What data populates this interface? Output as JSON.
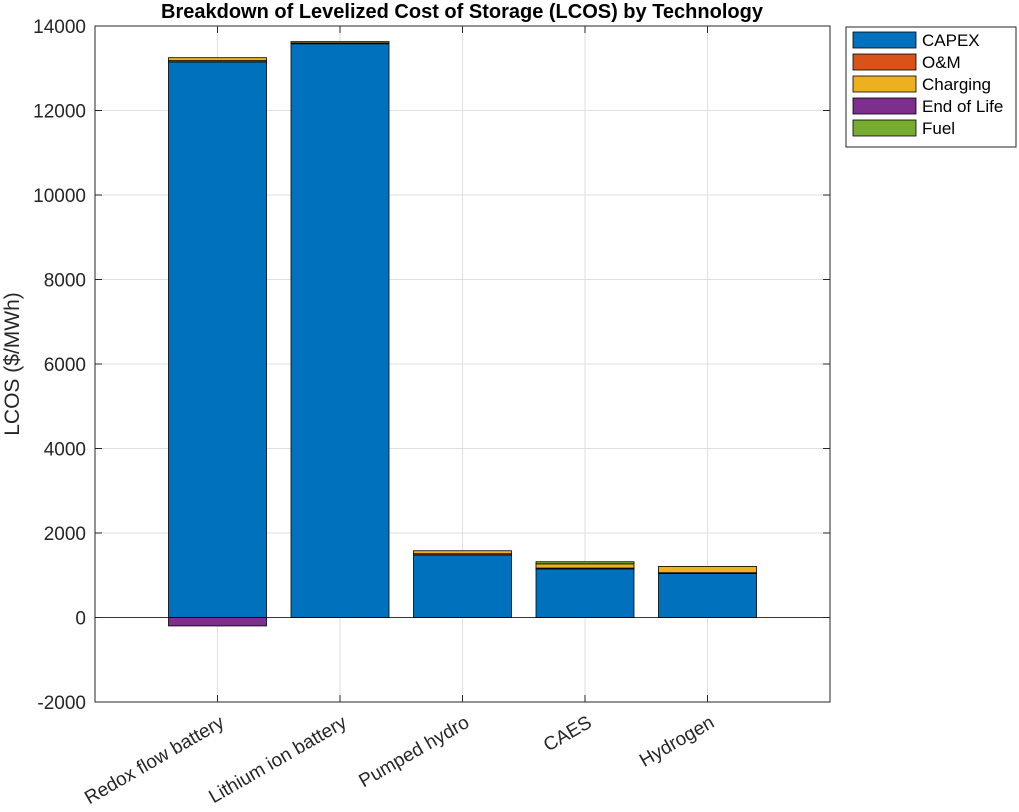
{
  "chart_data": {
    "type": "bar",
    "stacked": true,
    "title": "Breakdown of Levelized Cost of Storage (LCOS) by Technology",
    "xlabel": "",
    "ylabel": "LCOS ($/MWh)",
    "ylim": [
      -2000,
      14000
    ],
    "yticks": [
      -2000,
      0,
      2000,
      4000,
      6000,
      8000,
      10000,
      12000,
      14000
    ],
    "grid": true,
    "legend_position": "outside-top-right",
    "categories": [
      "Redox flow battery",
      "Lithium ion battery",
      "Pumped hydro",
      "CAES",
      "Hydrogen"
    ],
    "series": [
      {
        "name": "CAPEX",
        "color": "#0072BD",
        "values": [
          13150,
          13580,
          1480,
          1150,
          1040
        ]
      },
      {
        "name": "O&M",
        "color": "#D95319",
        "values": [
          30,
          20,
          30,
          20,
          20
        ]
      },
      {
        "name": "Charging",
        "color": "#EDB120",
        "values": [
          70,
          30,
          70,
          100,
          150
        ]
      },
      {
        "name": "End of Life",
        "color": "#7E2F8E",
        "values": [
          -200,
          0,
          0,
          0,
          0
        ]
      },
      {
        "name": "Fuel",
        "color": "#77AC30",
        "values": [
          0,
          0,
          0,
          50,
          0
        ]
      }
    ]
  }
}
